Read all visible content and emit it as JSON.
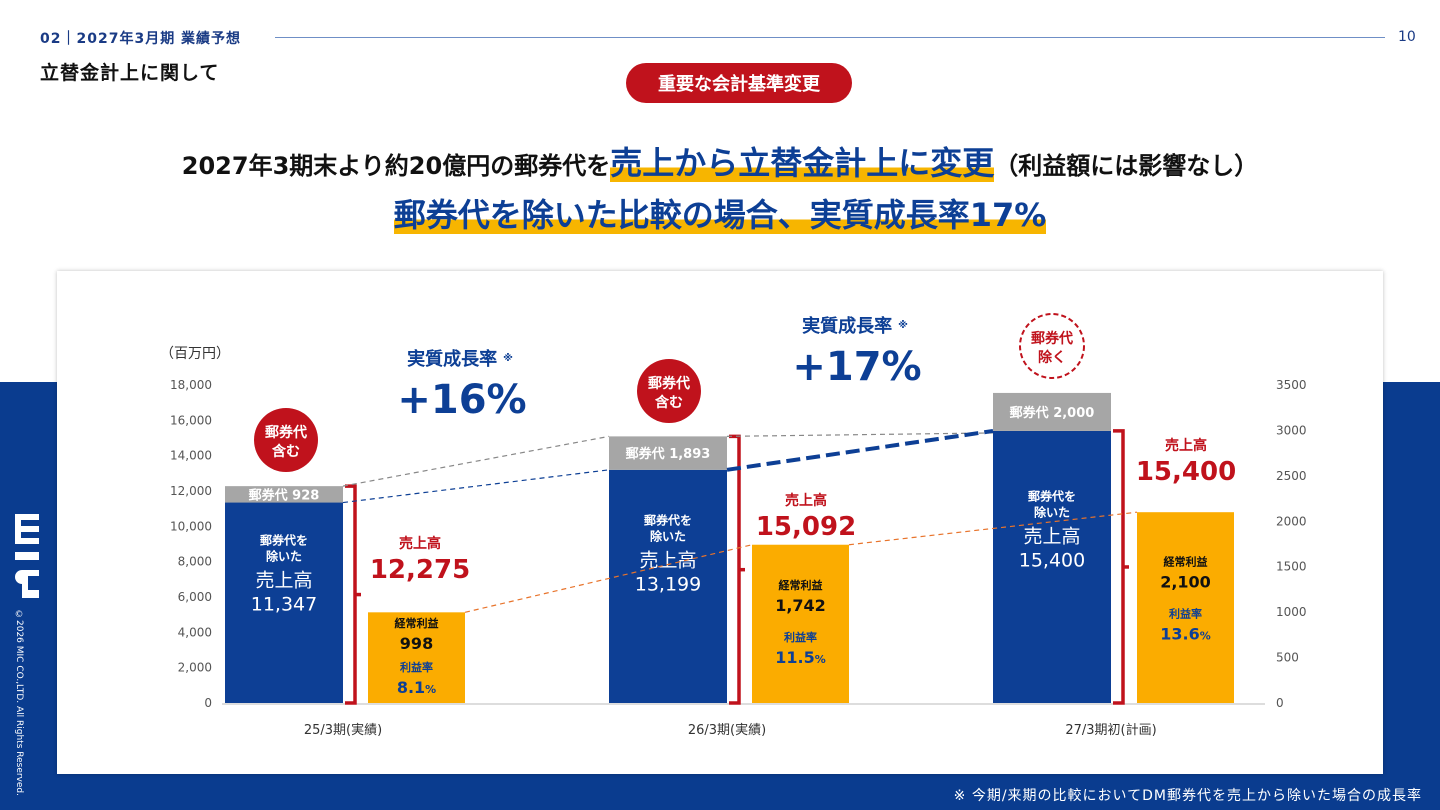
{
  "header": {
    "section": "02｜2027年3月期 業績予想",
    "page_number": "10",
    "subtitle": "立替金計上に関して"
  },
  "badge": {
    "label": "重要な会計基準変更"
  },
  "headline": {
    "part1": "2027年3期末より約20億円の郵券代を",
    "highlight": "売上から立替金計上に変更",
    "part2": "（利益額には影響なし）"
  },
  "headline2": {
    "text": "郵券代を除いた比較の場合、実質成長率17%"
  },
  "footnote": "※ 今期/来期の比較においてDM郵券代を売上から除いた場合の成長率",
  "copyright": "©2026 MIC CO.,LTD. All Rights Reserved.",
  "colors": {
    "navy": "#0a3c8f",
    "bar_blue": "#0d3f95",
    "postage_gray": "#a6a6a6",
    "profit_orange": "#fbac00",
    "red": "#c0121c"
  },
  "chart_data": {
    "type": "bar",
    "categories": [
      "25/3期(実績)",
      "26/3期(実績)",
      "27/3期初(計画)"
    ],
    "ylabel": "（百万円）",
    "ylim": [
      0,
      18000
    ],
    "y2lim": [
      0,
      3500
    ],
    "yticks": [
      "0",
      "2,000",
      "4,000",
      "6,000",
      "8,000",
      "10,000",
      "12,000",
      "14,000",
      "16,000",
      "18,000"
    ],
    "y2ticks": [
      "0",
      "500",
      "1000",
      "1500",
      "2000",
      "2500",
      "3000",
      "3500"
    ],
    "series": [
      {
        "name": "売上高",
        "values": [
          11347,
          13199,
          15400
        ]
      },
      {
        "name": "郵券代",
        "values": [
          928,
          1893,
          2000
        ]
      },
      {
        "name": "経常利益",
        "values": [
          998,
          1742,
          2100
        ]
      }
    ],
    "total_sales_values": [
      12275,
      15092,
      15400
    ],
    "profit_margin_values": [
      8.1,
      11.5,
      13.6
    ],
    "labels": {
      "sales_inner": [
        "郵券代を",
        "除いた",
        "売上高"
      ],
      "postage_prefix": "郵券代",
      "postage_text": [
        "郵券代 928",
        "郵券代 1,893",
        "郵券代 2,000"
      ],
      "sales_text": [
        "11,347",
        "13,199",
        "15,400"
      ],
      "total_sales_title": "売上高",
      "total_sales_text": [
        "12,275",
        "15,092",
        "15,400"
      ],
      "profit_title": "経常利益",
      "profit_text": [
        "998",
        "1,742",
        "2,100"
      ],
      "margin_title": "利益率",
      "margin_text": [
        "8.1",
        "11.5",
        "13.6"
      ],
      "margin_unit": "%",
      "growth_title": "実質成長率",
      "growth_note": "※",
      "growth_values": [
        "+16%",
        "+17%"
      ],
      "includes": [
        "郵券代",
        "含む"
      ],
      "excludes": [
        "郵券代",
        "除く"
      ]
    }
  }
}
